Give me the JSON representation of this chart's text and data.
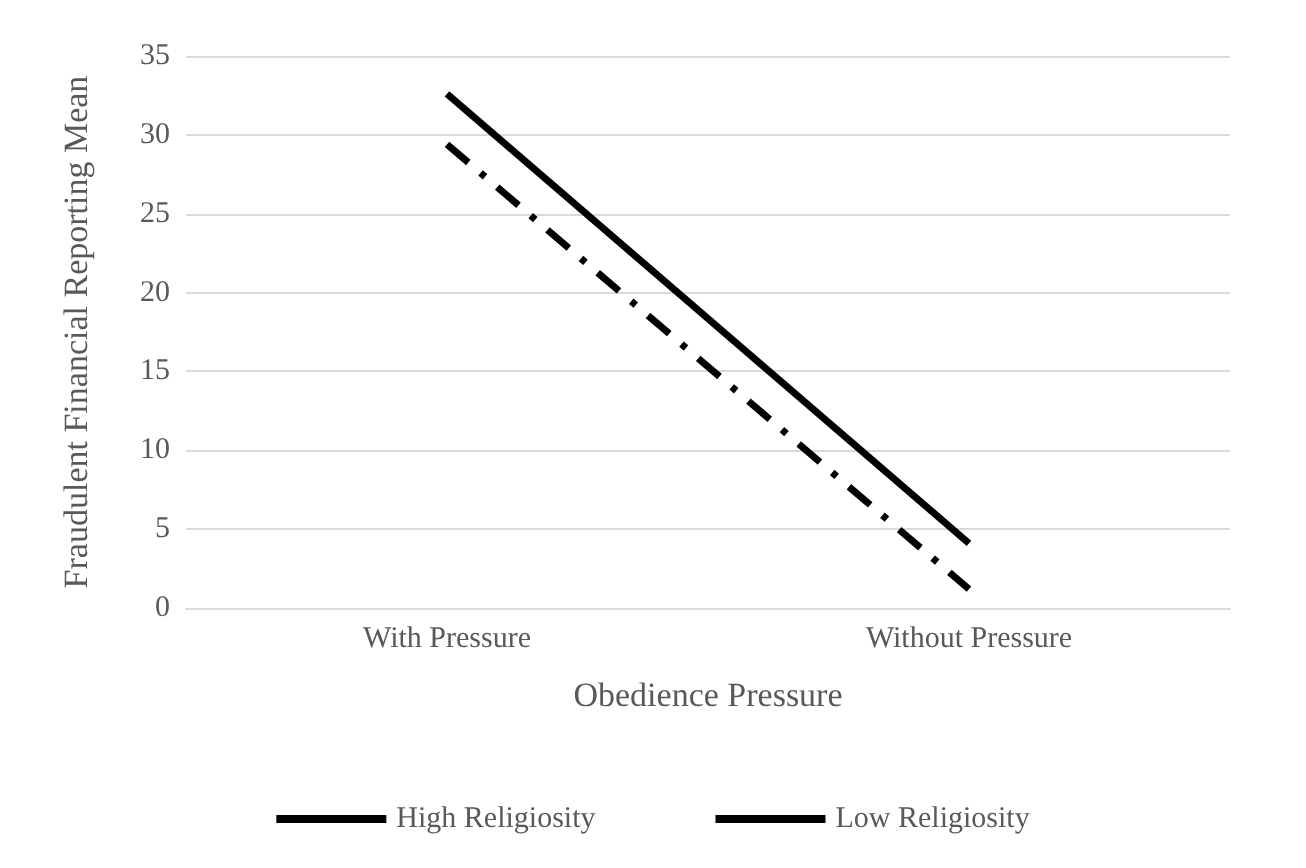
{
  "chart_data": {
    "type": "line",
    "xlabel": "Obedience Pressure",
    "ylabel": "Fraudulent Financial Reporting Mean",
    "categories": [
      "With Pressure",
      "Without Pressure"
    ],
    "series": [
      {
        "name": "High Religiosity",
        "color": "#000000",
        "values": [
          32.6,
          4.1
        ],
        "line_style": "solid"
      },
      {
        "name": "Low Religiosity",
        "color": "#000000",
        "values": [
          29.4,
          1.2
        ],
        "line_style": "dashed"
      }
    ],
    "ylim": [
      0,
      35
    ],
    "yticks": [
      0,
      5,
      10,
      15,
      20,
      25,
      30,
      35
    ],
    "grid": "y",
    "legend": "bottom",
    "marker": "none"
  }
}
